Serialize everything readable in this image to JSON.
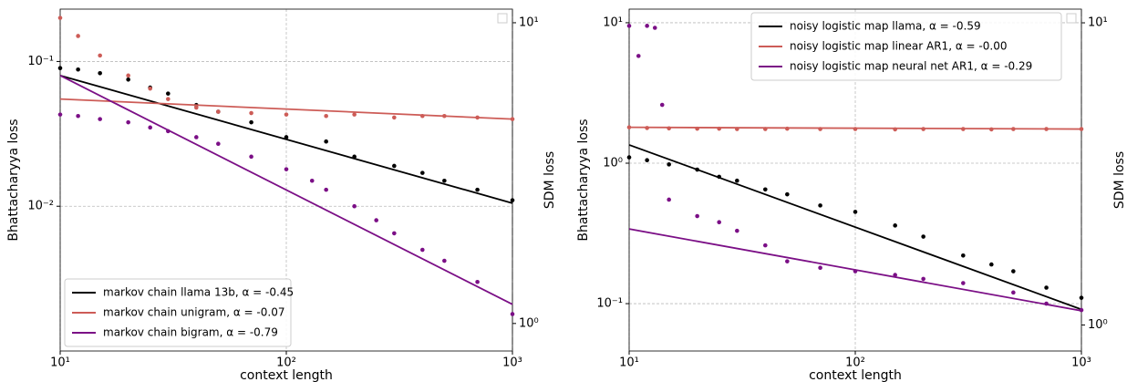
{
  "chart_data": [
    {
      "type": "scatter",
      "xlabel": "context length",
      "ylabel": "Bhattacharyya loss",
      "y2label": "SDM loss",
      "xlim": [
        10,
        1000
      ],
      "xticks": [
        {
          "value": 10,
          "label": "10¹"
        },
        {
          "value": 100,
          "label": "10²"
        },
        {
          "value": 1000,
          "label": "10³"
        }
      ],
      "ylim": [
        0.001,
        0.23
      ],
      "yticks": [
        {
          "value": 0.1,
          "label": "10⁻¹"
        },
        {
          "value": 0.01,
          "label": "10⁻²"
        }
      ],
      "y2lim": [
        0.81,
        11.1
      ],
      "y2ticks": [
        {
          "value": 10,
          "label": "10¹"
        },
        {
          "value": 1,
          "label": "10⁰"
        }
      ],
      "log": true,
      "grid": true,
      "legend": "lower left",
      "series": [
        {
          "name": "markov chain llama 13b, α = -0.45",
          "color": "#000000",
          "x": [
            10,
            12,
            15,
            20,
            25,
            30,
            40,
            50,
            70,
            100,
            150,
            200,
            300,
            400,
            500,
            700,
            1000
          ],
          "values": [
            0.09,
            0.088,
            0.083,
            0.075,
            0.066,
            0.06,
            0.05,
            0.045,
            0.038,
            0.03,
            0.028,
            0.022,
            0.019,
            0.017,
            0.015,
            0.013,
            0.011
          ],
          "fit": [
            0.08,
            0.0105
          ]
        },
        {
          "name": "markov chain unigram, α = -0.07",
          "color": "#cd5c57",
          "x": [
            10,
            12,
            15,
            20,
            25,
            30,
            40,
            50,
            70,
            100,
            150,
            200,
            300,
            400,
            500,
            700,
            1000
          ],
          "values": [
            0.2,
            0.15,
            0.11,
            0.08,
            0.065,
            0.055,
            0.048,
            0.045,
            0.044,
            0.043,
            0.042,
            0.043,
            0.041,
            0.042,
            0.042,
            0.041,
            0.04
          ],
          "fit": [
            0.055,
            0.04
          ]
        },
        {
          "name": "markov chain bigram, α = -0.79",
          "color": "#7b0f86",
          "x": [
            10,
            12,
            15,
            20,
            25,
            30,
            40,
            50,
            70,
            100,
            130,
            150,
            200,
            250,
            300,
            400,
            500,
            700,
            1000
          ],
          "values": [
            0.043,
            0.042,
            0.04,
            0.038,
            0.035,
            0.033,
            0.03,
            0.027,
            0.022,
            0.018,
            0.015,
            0.013,
            0.01,
            0.008,
            0.0065,
            0.005,
            0.0042,
            0.003,
            0.0018
          ],
          "fit": [
            0.08,
            0.0021
          ]
        }
      ]
    },
    {
      "type": "scatter",
      "xlabel": "context length",
      "ylabel": "Bhattacharyya loss",
      "y2label": "SDM loss",
      "xlim": [
        10,
        1000
      ],
      "xticks": [
        {
          "value": 10,
          "label": "10¹"
        },
        {
          "value": 100,
          "label": "10²"
        },
        {
          "value": 1000,
          "label": "10³"
        }
      ],
      "ylim": [
        0.046,
        12.5
      ],
      "yticks": [
        {
          "value": 10,
          "label": "10¹"
        },
        {
          "value": 1,
          "label": "10⁰"
        },
        {
          "value": 0.1,
          "label": "10⁻¹"
        }
      ],
      "y2lim": [
        0.82,
        11.1
      ],
      "y2ticks": [
        {
          "value": 10,
          "label": "10¹"
        },
        {
          "value": 1,
          "label": "10⁰"
        }
      ],
      "log": true,
      "grid": true,
      "legend": "upper right",
      "series": [
        {
          "name": "noisy logistic map llama, α = -0.59",
          "color": "#000000",
          "x": [
            10,
            12,
            15,
            20,
            25,
            30,
            40,
            50,
            70,
            100,
            150,
            200,
            300,
            400,
            500,
            700,
            1000
          ],
          "values": [
            1.1,
            1.05,
            0.98,
            0.9,
            0.8,
            0.75,
            0.65,
            0.6,
            0.5,
            0.45,
            0.36,
            0.3,
            0.22,
            0.19,
            0.17,
            0.13,
            0.11
          ],
          "fit": [
            1.35,
            0.091
          ]
        },
        {
          "name": "noisy logistic map linear AR1, α = -0.00",
          "color": "#cd5c57",
          "x": [
            10,
            12,
            15,
            20,
            25,
            30,
            40,
            50,
            70,
            100,
            150,
            200,
            300,
            400,
            500,
            700,
            1000
          ],
          "values": [
            1.8,
            1.78,
            1.77,
            1.76,
            1.76,
            1.75,
            1.75,
            1.76,
            1.75,
            1.75,
            1.74,
            1.75,
            1.75,
            1.74,
            1.75,
            1.75,
            1.75
          ],
          "fit": [
            1.8,
            1.75
          ]
        },
        {
          "name": "noisy logistic map neural net AR1, α = -0.29",
          "color": "#7b0f86",
          "x": [
            10,
            11,
            12,
            13,
            14,
            15,
            20,
            25,
            30,
            40,
            50,
            70,
            100,
            150,
            200,
            300,
            500,
            700,
            1000
          ],
          "values": [
            9.5,
            5.8,
            9.5,
            9.2,
            2.6,
            0.55,
            0.42,
            0.38,
            0.33,
            0.26,
            0.2,
            0.18,
            0.17,
            0.16,
            0.15,
            0.14,
            0.12,
            0.1,
            0.09
          ],
          "fit": [
            0.34,
            0.089
          ]
        }
      ]
    }
  ]
}
